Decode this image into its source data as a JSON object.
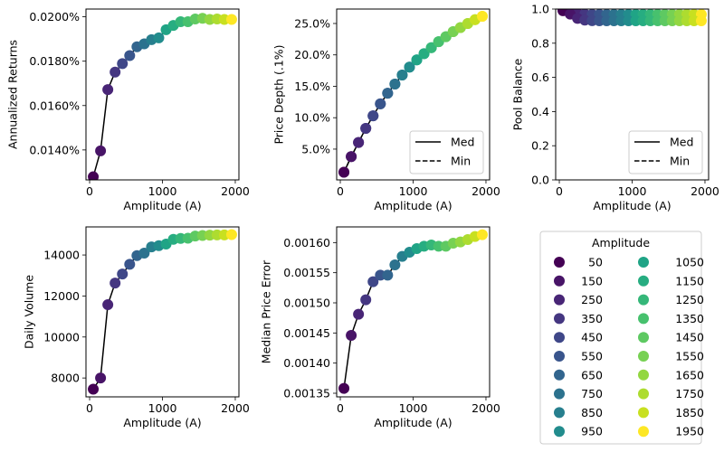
{
  "figure": {
    "shared_xlabel": "Amplitude (A)",
    "amplitude_legend": {
      "title": "Amplitude",
      "entries": [
        "50",
        "150",
        "250",
        "350",
        "450",
        "550",
        "650",
        "750",
        "850",
        "950",
        "1050",
        "1150",
        "1250",
        "1350",
        "1450",
        "1550",
        "1650",
        "1750",
        "1850",
        "1950"
      ]
    },
    "line_legend": {
      "entries": [
        {
          "label": "Med",
          "style": "solid"
        },
        {
          "label": "Min",
          "style": "dashed"
        }
      ]
    },
    "colormap": [
      "#440154",
      "#481467",
      "#482576",
      "#453781",
      "#3f4788",
      "#39558c",
      "#32658e",
      "#2c728e",
      "#277f8e",
      "#228c8d",
      "#1f9a8a",
      "#20a486",
      "#27ad81",
      "#35b779",
      "#47c16e",
      "#5ec962",
      "#77d153",
      "#93d741",
      "#addc30",
      "#c8e020",
      "#fde725"
    ]
  },
  "chart_data": [
    {
      "id": "annualized-returns",
      "type": "scatter",
      "ylabel": "Annualized Returns",
      "xlabel": "Amplitude (A)",
      "xlim": [
        -50,
        2050
      ],
      "ylim": [
        0.01265,
        0.02035
      ],
      "x_ticks": [
        0,
        1000,
        2000
      ],
      "y_ticks": [
        0.014,
        0.016,
        0.018,
        0.02
      ],
      "y_tick_labels": [
        "0.0140%",
        "0.0160%",
        "0.0180%",
        "0.0200%"
      ],
      "x": [
        50,
        150,
        250,
        350,
        450,
        550,
        650,
        750,
        850,
        950,
        1050,
        1150,
        1250,
        1350,
        1450,
        1550,
        1650,
        1750,
        1850,
        1950
      ],
      "series": [
        {
          "name": "Med",
          "style": "solid",
          "values": [
            0.01279,
            0.01396,
            0.01672,
            0.01751,
            0.01789,
            0.01825,
            0.01865,
            0.01878,
            0.01897,
            0.01905,
            0.01942,
            0.01961,
            0.01978,
            0.01978,
            0.0199,
            0.01993,
            0.01988,
            0.0199,
            0.01988,
            0.01988
          ]
        }
      ],
      "legend": null
    },
    {
      "id": "price-depth",
      "type": "scatter",
      "ylabel": "Price Depth (.1%)",
      "xlabel": "Amplitude (A)",
      "xlim": [
        -50,
        2050
      ],
      "ylim": [
        0.1,
        27.3
      ],
      "x_ticks": [
        0,
        1000,
        2000
      ],
      "y_ticks": [
        5,
        10,
        15,
        20,
        25
      ],
      "y_tick_labels": [
        "5.0%",
        "10.0%",
        "15.0%",
        "20.0%",
        "25.0%"
      ],
      "x": [
        50,
        150,
        250,
        350,
        450,
        550,
        650,
        750,
        850,
        950,
        1050,
        1150,
        1250,
        1350,
        1450,
        1550,
        1650,
        1750,
        1850,
        1950
      ],
      "series": [
        {
          "name": "Med",
          "style": "solid",
          "values": [
            1.33,
            3.8,
            6.06,
            8.3,
            10.3,
            12.2,
            13.9,
            15.35,
            16.8,
            18.05,
            19.2,
            20.2,
            21.15,
            22.1,
            22.9,
            23.7,
            24.35,
            25.0,
            25.6,
            26.15
          ]
        },
        {
          "name": "Min",
          "style": "dashed",
          "values": [
            1.33,
            3.8,
            6.06,
            8.3,
            10.3,
            12.2,
            13.9,
            15.35,
            16.8,
            18.05,
            19.2,
            20.2,
            21.15,
            22.1,
            22.9,
            23.7,
            24.35,
            25.0,
            25.6,
            26.15
          ]
        }
      ],
      "legend": "lower-right"
    },
    {
      "id": "pool-balance",
      "type": "scatter",
      "ylabel": "Pool Balance",
      "xlabel": "Amplitude (A)",
      "xlim": [
        -50,
        2050
      ],
      "ylim": [
        0.0,
        1.0
      ],
      "x_ticks": [
        0,
        1000,
        2000
      ],
      "y_ticks": [
        0.0,
        0.2,
        0.4,
        0.6,
        0.8,
        1.0
      ],
      "y_tick_labels": [
        "0.0",
        "0.2",
        "0.4",
        "0.6",
        "0.8",
        "1.0"
      ],
      "x": [
        50,
        150,
        250,
        350,
        450,
        550,
        650,
        750,
        850,
        950,
        1050,
        1150,
        1250,
        1350,
        1450,
        1550,
        1650,
        1750,
        1850,
        1950
      ],
      "series": [
        {
          "name": "Med",
          "style": "solid",
          "values": [
            0.995,
            0.985,
            0.975,
            0.97,
            0.968,
            0.968,
            0.968,
            0.968,
            0.968,
            0.968,
            0.968,
            0.968,
            0.968,
            0.968,
            0.968,
            0.968,
            0.968,
            0.968,
            0.968,
            0.968
          ]
        },
        {
          "name": "Min",
          "style": "dashed",
          "values": [
            0.99,
            0.97,
            0.945,
            0.935,
            0.932,
            0.931,
            0.931,
            0.931,
            0.931,
            0.931,
            0.931,
            0.931,
            0.931,
            0.931,
            0.931,
            0.931,
            0.931,
            0.931,
            0.931,
            0.931
          ]
        }
      ],
      "legend": "lower-right"
    },
    {
      "id": "daily-volume",
      "type": "scatter",
      "ylabel": "Daily Volume",
      "xlabel": "Amplitude (A)",
      "xlim": [
        -50,
        2050
      ],
      "ylim": [
        7080,
        15370
      ],
      "x_ticks": [
        0,
        1000,
        2000
      ],
      "y_ticks": [
        8000,
        10000,
        12000,
        14000
      ],
      "y_tick_labels": [
        "8000",
        "10000",
        "12000",
        "14000"
      ],
      "x": [
        50,
        150,
        250,
        350,
        450,
        550,
        650,
        750,
        850,
        950,
        1050,
        1150,
        1250,
        1350,
        1450,
        1550,
        1650,
        1750,
        1850,
        1950
      ],
      "series": [
        {
          "name": "Med",
          "style": "solid",
          "values": [
            7457,
            8000,
            11575,
            12630,
            13070,
            13545,
            13970,
            14090,
            14395,
            14455,
            14530,
            14765,
            14805,
            14820,
            14925,
            14950,
            14970,
            14980,
            14980,
            14995
          ]
        }
      ],
      "legend": null
    },
    {
      "id": "median-price-error",
      "type": "scatter",
      "ylabel": "Median Price Error",
      "xlabel": "Amplitude (A)",
      "xlim": [
        -50,
        2050
      ],
      "ylim": [
        0.001344,
        0.001626
      ],
      "x_ticks": [
        0,
        1000,
        2000
      ],
      "y_ticks": [
        0.00135,
        0.0014,
        0.00145,
        0.0015,
        0.00155,
        0.0016
      ],
      "y_tick_labels": [
        "0.00135",
        "0.00140",
        "0.00145",
        "0.00150",
        "0.00155",
        "0.00160"
      ],
      "x": [
        50,
        150,
        250,
        350,
        450,
        550,
        650,
        750,
        850,
        950,
        1050,
        1150,
        1250,
        1350,
        1450,
        1550,
        1650,
        1750,
        1850,
        1950
      ],
      "series": [
        {
          "name": "Med",
          "style": "solid",
          "values": [
            0.001358,
            0.001446,
            0.001481,
            0.001505,
            0.001535,
            0.001546,
            0.001546,
            0.001563,
            0.001577,
            0.001584,
            0.00159,
            0.001594,
            0.001596,
            0.001594,
            0.001594,
            0.001599,
            0.001601,
            0.001605,
            0.00161,
            0.001613
          ]
        }
      ],
      "legend": null
    }
  ]
}
